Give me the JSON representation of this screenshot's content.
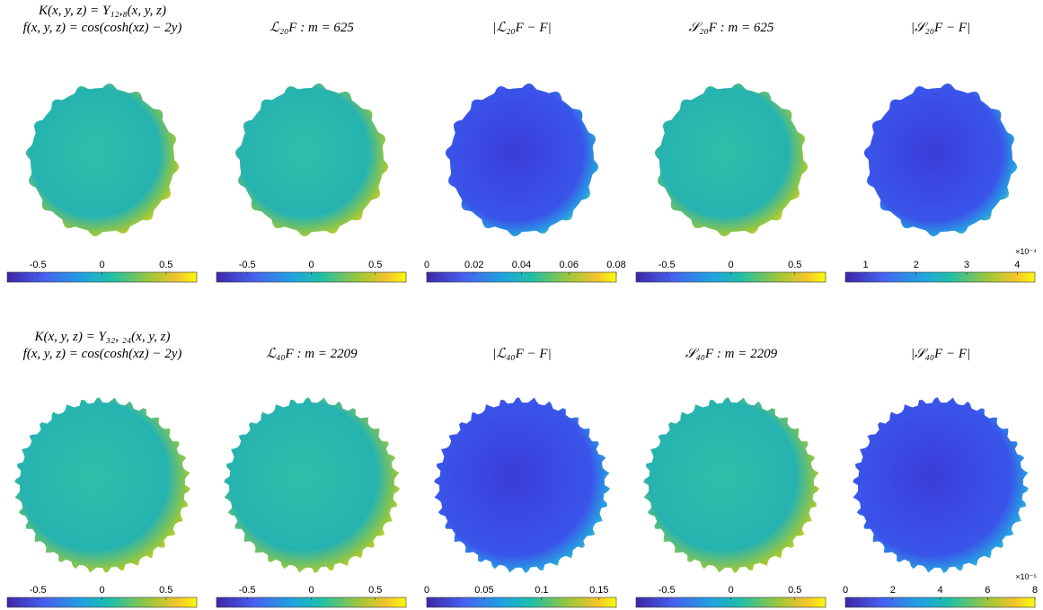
{
  "rows": [
    {
      "panels": [
        {
          "title_lines": [
            "K(x, y, z) = Y₁₂,₈(x, y, z)",
            "f(x, y, z) = cos(cosh(xz) − 2y)"
          ],
          "colorbar": {
            "lim": [
              -0.74,
              0.74
            ],
            "ticks": [
              -0.5,
              0,
              0.5
            ]
          }
        },
        {
          "title_lines": [
            "ℒ₂₀F : m = 625"
          ],
          "colorbar": {
            "lim": [
              -0.74,
              0.74
            ],
            "ticks": [
              -0.5,
              0,
              0.5
            ]
          }
        },
        {
          "title_lines": [
            "|ℒ₂₀F − F|"
          ],
          "colorbar": {
            "lim": [
              0,
              0.08
            ],
            "ticks": [
              0,
              0.02,
              0.04,
              0.06,
              0.08
            ]
          }
        },
        {
          "title_lines": [
            "𝒮₂₀F : m = 625"
          ],
          "colorbar": {
            "lim": [
              -0.74,
              0.74
            ],
            "ticks": [
              -0.5,
              0,
              0.5
            ]
          }
        },
        {
          "title_lines": [
            "|𝒮₂₀F − F|"
          ],
          "colorbar": {
            "lim": [
              0.6,
              4.35
            ],
            "ticks": [
              1,
              2,
              3,
              4
            ],
            "exponent_label": "×10⁻⁴"
          }
        }
      ]
    },
    {
      "panels": [
        {
          "title_lines": [
            "K(x, y, z) = Y₃₂, ₂₄(x, y, z)",
            "f(x, y, z) = cos(cosh(xz) − 2y)"
          ],
          "colorbar": {
            "lim": [
              -0.74,
              0.74
            ],
            "ticks": [
              -0.5,
              0,
              0.5
            ]
          }
        },
        {
          "title_lines": [
            "ℒ₄₀F : m = 2209"
          ],
          "colorbar": {
            "lim": [
              -0.74,
              0.74
            ],
            "ticks": [
              -0.5,
              0,
              0.5
            ]
          }
        },
        {
          "title_lines": [
            "|ℒ₄₀F − F|"
          ],
          "colorbar": {
            "lim": [
              0,
              0.165
            ],
            "ticks": [
              0,
              0.05,
              0.1,
              0.15
            ]
          }
        },
        {
          "title_lines": [
            "𝒮₄₀F : m = 2209"
          ],
          "colorbar": {
            "lim": [
              -0.74,
              0.74
            ],
            "ticks": [
              -0.5,
              0,
              0.5
            ]
          }
        },
        {
          "title_lines": [
            "|𝒮₄₀F − F|"
          ],
          "colorbar": {
            "lim": [
              0,
              8
            ],
            "ticks": [
              0,
              2,
              4,
              6,
              8
            ],
            "exponent_label": "×10⁻⁵"
          }
        }
      ]
    }
  ]
}
